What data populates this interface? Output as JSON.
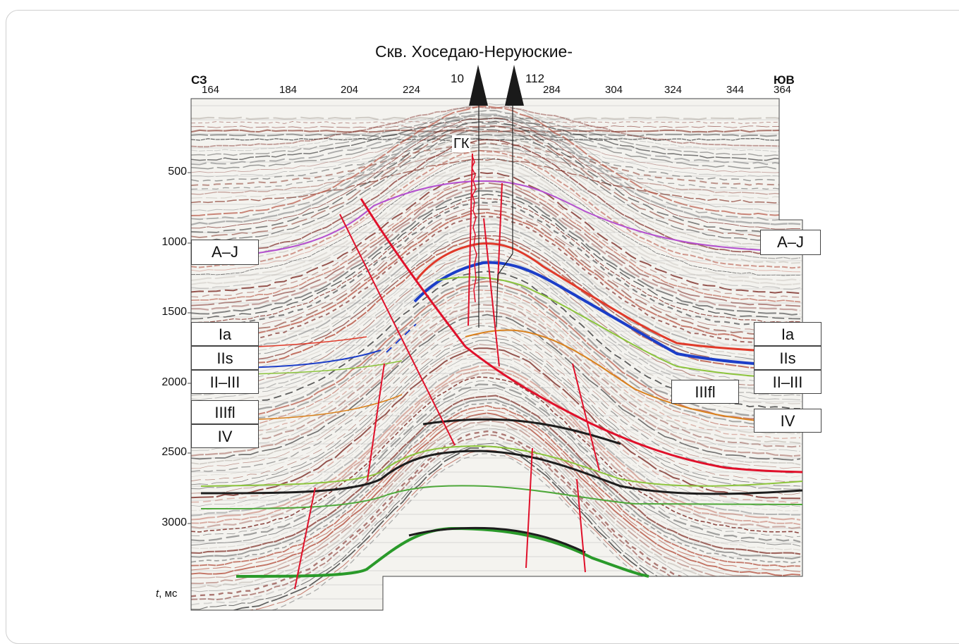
{
  "title": "Скв. Хоседаю-Неруюские-",
  "direction_left": "СЗ",
  "direction_right": "ЮВ",
  "trace_labels": [
    "164",
    "184",
    "204",
    "224",
    "284",
    "304",
    "324",
    "344",
    "364"
  ],
  "wells": [
    "10",
    "112"
  ],
  "time_ticks": [
    "500",
    "1000",
    "1500",
    "2000",
    "2500",
    "3000"
  ],
  "time_axis": {
    "symbol": "t",
    "unit": ", мс"
  },
  "marker_gk": "ГК",
  "horizons_left": [
    "A–J",
    "Ia",
    "IIs",
    "II–III",
    "IIIfl",
    "IV"
  ],
  "horizons_right": [
    "A–J",
    "Ia",
    "IIs",
    "II–III",
    "IIIfl",
    "IV"
  ],
  "horizon_colors": {
    "A-J": "#b44fcf",
    "Ia": "#e03a2a",
    "IIs": "#1c3ec8",
    "II-III": "#8cc43c",
    "IIIfl": "#d9801c",
    "deep": "#2a9a2a",
    "fault": "#e0102a"
  }
}
